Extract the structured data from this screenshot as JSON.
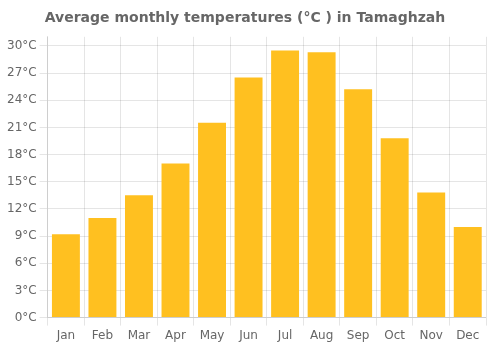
{
  "chart_data": {
    "type": "bar",
    "title": "Average monthly temperatures (°C ) in Tamaghzah",
    "categories": [
      "Jan",
      "Feb",
      "Mar",
      "Apr",
      "May",
      "Jun",
      "Jul",
      "Aug",
      "Sep",
      "Oct",
      "Nov",
      "Dec"
    ],
    "values": [
      9.2,
      11.0,
      13.5,
      17.0,
      21.5,
      26.5,
      29.5,
      29.3,
      25.2,
      19.8,
      13.8,
      10.0
    ],
    "color": "#FFC020",
    "ylim": [
      0,
      31
    ],
    "yticks": [
      {
        "value": 0,
        "label": "0°C"
      },
      {
        "value": 3,
        "label": "3°C"
      },
      {
        "value": 6,
        "label": "6°C"
      },
      {
        "value": 9,
        "label": "9°C"
      },
      {
        "value": 12,
        "label": "12°C"
      },
      {
        "value": 15,
        "label": "15°C"
      },
      {
        "value": 18,
        "label": "18°C"
      },
      {
        "value": 21,
        "label": "21°C"
      },
      {
        "value": 24,
        "label": "24°C"
      },
      {
        "value": 27,
        "label": "27°C"
      },
      {
        "value": 30,
        "label": "30°C"
      }
    ],
    "grid": true
  }
}
